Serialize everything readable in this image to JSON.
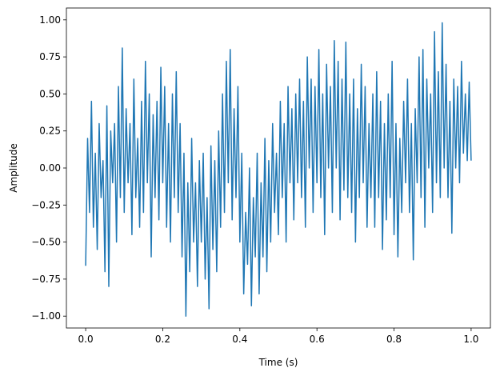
{
  "chart_data": {
    "type": "line",
    "xlabel": "Time (s)",
    "ylabel": "Amplitude",
    "x": [
      0,
      0.005,
      0.01,
      0.015,
      0.02,
      0.025,
      0.03,
      0.035,
      0.04,
      0.045,
      0.05,
      0.055,
      0.06,
      0.065,
      0.07,
      0.075,
      0.08,
      0.085,
      0.09,
      0.095,
      0.1,
      0.105,
      0.11,
      0.115,
      0.12,
      0.125,
      0.13,
      0.135,
      0.14,
      0.145,
      0.15,
      0.155,
      0.16,
      0.165,
      0.17,
      0.175,
      0.18,
      0.185,
      0.19,
      0.195,
      0.2,
      0.205,
      0.21,
      0.215,
      0.22,
      0.225,
      0.23,
      0.235,
      0.24,
      0.245,
      0.25,
      0.255,
      0.26,
      0.265,
      0.27,
      0.275,
      0.28,
      0.285,
      0.29,
      0.295,
      0.3,
      0.305,
      0.31,
      0.315,
      0.32,
      0.325,
      0.33,
      0.335,
      0.34,
      0.345,
      0.35,
      0.355,
      0.36,
      0.365,
      0.37,
      0.375,
      0.38,
      0.385,
      0.39,
      0.395,
      0.4,
      0.405,
      0.41,
      0.415,
      0.42,
      0.425,
      0.43,
      0.435,
      0.44,
      0.445,
      0.45,
      0.455,
      0.46,
      0.465,
      0.47,
      0.475,
      0.48,
      0.485,
      0.49,
      0.495,
      0.5,
      0.505,
      0.51,
      0.515,
      0.52,
      0.525,
      0.53,
      0.535,
      0.54,
      0.545,
      0.55,
      0.555,
      0.56,
      0.565,
      0.57,
      0.575,
      0.58,
      0.585,
      0.59,
      0.595,
      0.6,
      0.605,
      0.61,
      0.615,
      0.62,
      0.625,
      0.63,
      0.635,
      0.64,
      0.645,
      0.65,
      0.655,
      0.66,
      0.665,
      0.67,
      0.675,
      0.68,
      0.685,
      0.69,
      0.695,
      0.7,
      0.705,
      0.71,
      0.715,
      0.72,
      0.725,
      0.73,
      0.735,
      0.74,
      0.745,
      0.75,
      0.755,
      0.76,
      0.765,
      0.77,
      0.775,
      0.78,
      0.785,
      0.79,
      0.795,
      0.8,
      0.805,
      0.81,
      0.815,
      0.82,
      0.825,
      0.83,
      0.835,
      0.84,
      0.845,
      0.85,
      0.855,
      0.86,
      0.865,
      0.87,
      0.875,
      0.88,
      0.885,
      0.89,
      0.895,
      0.9,
      0.905,
      0.91,
      0.915,
      0.92,
      0.925,
      0.93,
      0.935,
      0.94,
      0.945,
      0.95,
      0.955,
      0.96,
      0.965,
      0.97,
      0.975,
      0.98,
      0.985,
      0.99,
      0.995,
      1
    ],
    "series": [
      {
        "color": "#1f77b4",
        "values": [
          -0.66,
          0.2,
          -0.3,
          0.45,
          -0.4,
          0.1,
          -0.55,
          0.3,
          -0.2,
          0.05,
          -0.7,
          0.42,
          -0.8,
          0.25,
          -0.1,
          0.3,
          -0.5,
          0.55,
          -0.2,
          0.81,
          -0.3,
          0.4,
          -0.1,
          0.3,
          -0.45,
          0.6,
          -0.2,
          0.2,
          -0.4,
          0.45,
          -0.3,
          0.72,
          -0.1,
          0.5,
          -0.6,
          0.36,
          -0.2,
          0.45,
          -0.35,
          0.68,
          -0.1,
          0.55,
          -0.4,
          0.3,
          -0.5,
          0.5,
          -0.2,
          0.65,
          -0.3,
          0.3,
          -0.6,
          0.1,
          -1.0,
          -0.1,
          -0.7,
          0.2,
          -0.5,
          -0.1,
          -0.8,
          0.05,
          -0.5,
          0.1,
          -0.75,
          -0.2,
          -0.95,
          0.15,
          -0.55,
          0.05,
          -0.7,
          0.25,
          -0.4,
          0.5,
          -0.3,
          0.72,
          -0.1,
          0.8,
          -0.35,
          0.4,
          -0.2,
          0.55,
          -0.5,
          0.1,
          -0.85,
          -0.3,
          -0.65,
          0.0,
          -0.93,
          -0.2,
          -0.6,
          0.1,
          -0.85,
          -0.1,
          -0.6,
          0.2,
          -0.7,
          0.05,
          -0.5,
          0.3,
          -0.3,
          0.1,
          -0.45,
          0.45,
          -0.2,
          0.3,
          -0.5,
          0.55,
          -0.1,
          0.4,
          -0.35,
          0.5,
          -0.1,
          0.6,
          -0.2,
          0.45,
          -0.4,
          0.75,
          0.0,
          0.6,
          -0.3,
          0.55,
          -0.1,
          0.8,
          -0.2,
          0.5,
          -0.45,
          0.7,
          0.0,
          0.55,
          -0.3,
          0.86,
          0.0,
          0.72,
          -0.35,
          0.6,
          -0.15,
          0.85,
          -0.2,
          0.5,
          -0.3,
          0.6,
          -0.5,
          0.4,
          -0.2,
          0.7,
          -0.1,
          0.55,
          -0.4,
          0.3,
          -0.2,
          0.5,
          -0.4,
          0.65,
          -0.2,
          0.45,
          -0.55,
          0.3,
          -0.35,
          0.5,
          -0.2,
          0.72,
          -0.45,
          0.3,
          -0.6,
          0.2,
          -0.3,
          0.45,
          -0.1,
          0.6,
          -0.3,
          0.3,
          -0.62,
          0.4,
          -0.1,
          0.75,
          -0.2,
          0.8,
          -0.4,
          0.6,
          0.0,
          0.5,
          -0.3,
          0.92,
          -0.1,
          0.65,
          -0.2,
          0.98,
          0.0,
          0.7,
          -0.2,
          0.45,
          -0.44,
          0.6,
          0.0,
          0.55,
          -0.1,
          0.72,
          0.1,
          0.5,
          0.05,
          0.58,
          0.05
        ]
      }
    ],
    "xlim": [
      -0.05,
      1.05
    ],
    "xticks": [
      {
        "value": 0,
        "label": "0.0"
      },
      0.2,
      0.4,
      0.6,
      0.8,
      {
        "value": 1,
        "label": "1.0"
      }
    ],
    "ylim": [
      -1.08,
      1.08
    ],
    "yticks": [
      {
        "value": -1,
        "label": "−1.00"
      },
      {
        "value": -0.75,
        "label": "−0.75"
      },
      {
        "value": -0.5,
        "label": "−0.50"
      },
      {
        "value": -0.25,
        "label": "−0.25"
      },
      {
        "value": 0,
        "label": "0.00"
      },
      {
        "value": 0.25,
        "label": "0.25"
      },
      {
        "value": 0.5,
        "label": "0.50"
      },
      {
        "value": 0.75,
        "label": "0.75"
      },
      {
        "value": 1,
        "label": "1.00"
      }
    ],
    "grid": false
  }
}
